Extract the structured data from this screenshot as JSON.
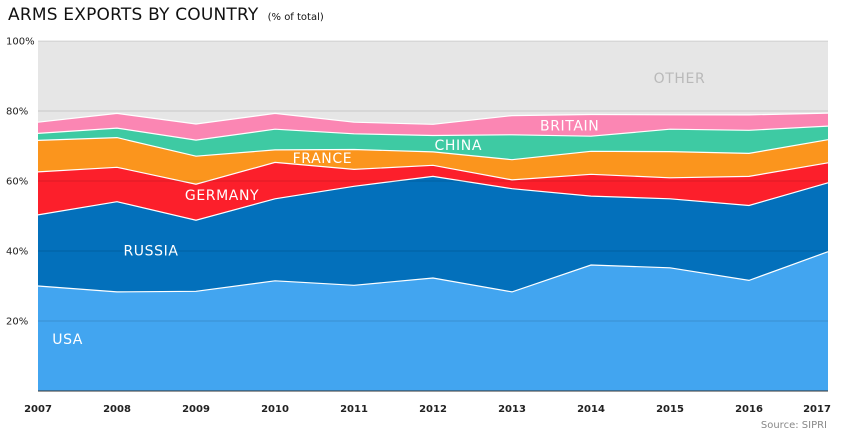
{
  "title": "ARMS EXPORTS BY COUNTRY",
  "subtitle": "(% of total)",
  "source": "Source: SIPRI",
  "chart_data": {
    "type": "area",
    "stacked": true,
    "x": [
      "2007",
      "2008",
      "2009",
      "2010",
      "2011",
      "2012",
      "2013",
      "2014",
      "2015",
      "2016",
      "2017"
    ],
    "ylim": [
      0,
      100
    ],
    "yticks": [
      {
        "value": 20,
        "label": "20%"
      },
      {
        "value": 40,
        "label": "40%"
      },
      {
        "value": 60,
        "label": "60%"
      },
      {
        "value": 80,
        "label": "80%"
      },
      {
        "value": 100,
        "label": "100%"
      }
    ],
    "grid": true,
    "series": [
      {
        "name": "USA",
        "color": "#42a5f0",
        "label_color": "#ffffff",
        "values": [
          30,
          28.3,
          28.5,
          31.5,
          30.2,
          32.3,
          28.3,
          36,
          35.2,
          31.6,
          39.8
        ]
      },
      {
        "name": "RUSSIA",
        "color": "#0370bb",
        "label_color": "#ffffff",
        "values": [
          20.3,
          25.8,
          20.3,
          23.4,
          28.3,
          29,
          29.5,
          19.7,
          19.7,
          21.4,
          19.7
        ]
      },
      {
        "name": "GERMANY",
        "color": "#fc1f2b",
        "label_color": "#ffffff",
        "values": [
          12.3,
          9.8,
          10.3,
          10.4,
          4.8,
          3.2,
          2.5,
          6.2,
          6,
          8.3,
          5.7
        ]
      },
      {
        "name": "FRANCE",
        "color": "#fb951d",
        "label_color": "#ffffff",
        "values": [
          9,
          8.5,
          8,
          3.6,
          5.7,
          3.8,
          5.8,
          6.6,
          7.5,
          6.6,
          6.6
        ]
      },
      {
        "name": "CHINA",
        "color": "#3ecaa3",
        "label_color": "#ffffff",
        "values": [
          2,
          2.7,
          4.6,
          5.9,
          4.5,
          4.7,
          7.1,
          4.3,
          6.4,
          6.6,
          3.9
        ]
      },
      {
        "name": "BRITAIN",
        "color": "#fb86b3",
        "label_color": "#ffffff",
        "values": [
          3.2,
          4.2,
          4.6,
          4.5,
          3.3,
          3.2,
          5.5,
          6.2,
          4.1,
          4.4,
          3.7
        ]
      },
      {
        "name": "OTHER",
        "color": "#e6e6e6",
        "label_color": "#b9b9b9",
        "values": [
          23.2,
          20.7,
          23.7,
          20.7,
          23.2,
          23.8,
          21.3,
          21,
          21.1,
          21.1,
          20.6
        ]
      }
    ]
  }
}
